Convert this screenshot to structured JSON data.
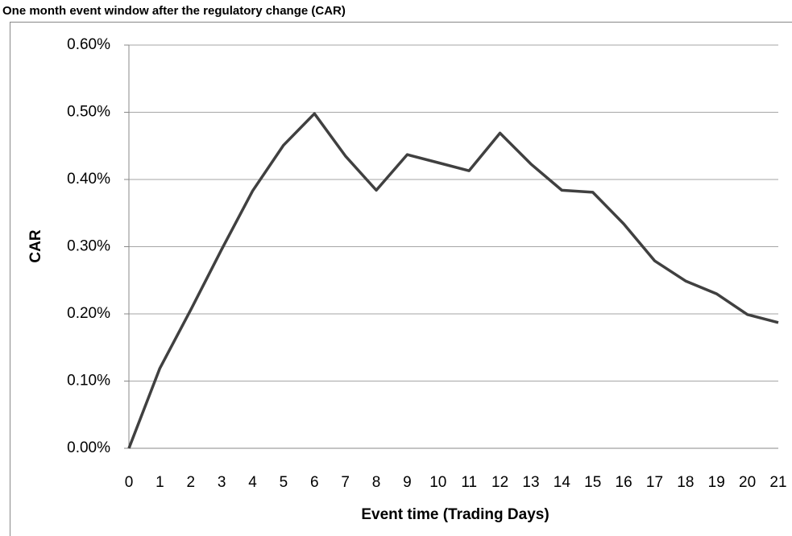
{
  "chart_data": {
    "type": "line",
    "title": "One month event window after the regulatory change (CAR)",
    "x_label": "Event time (Trading Days)",
    "y_label": "CAR",
    "x": [
      0,
      1,
      2,
      3,
      4,
      5,
      6,
      7,
      8,
      9,
      10,
      11,
      12,
      13,
      14,
      15,
      16,
      17,
      18,
      19,
      20,
      21
    ],
    "values": [
      0,
      0.119,
      0.206,
      0.296,
      0.383,
      0.451,
      0.498,
      0.435,
      0.384,
      0.437,
      0.425,
      0.413,
      0.469,
      0.423,
      0.384,
      0.381,
      0.334,
      0.279,
      0.249,
      0.23,
      0.199,
      0.187
    ],
    "color": "#404040",
    "xlim": [
      0,
      21
    ],
    "xticks": [
      0,
      1,
      2,
      3,
      4,
      5,
      6,
      7,
      8,
      9,
      10,
      11,
      12,
      13,
      14,
      15,
      16,
      17,
      18,
      19,
      20,
      21
    ],
    "ylim": [
      0,
      0.6
    ],
    "yticks": [
      {
        "value": 0,
        "label": "0.00%"
      },
      {
        "value": 0.1,
        "label": "0.10%"
      },
      {
        "value": 0.2,
        "label": "0.20%"
      },
      {
        "value": 0.3,
        "label": "0.30%"
      },
      {
        "value": 0.4,
        "label": "0.40%"
      },
      {
        "value": 0.5,
        "label": "0.50%"
      },
      {
        "value": 0.6,
        "label": "0.60%"
      }
    ],
    "grid": true
  }
}
